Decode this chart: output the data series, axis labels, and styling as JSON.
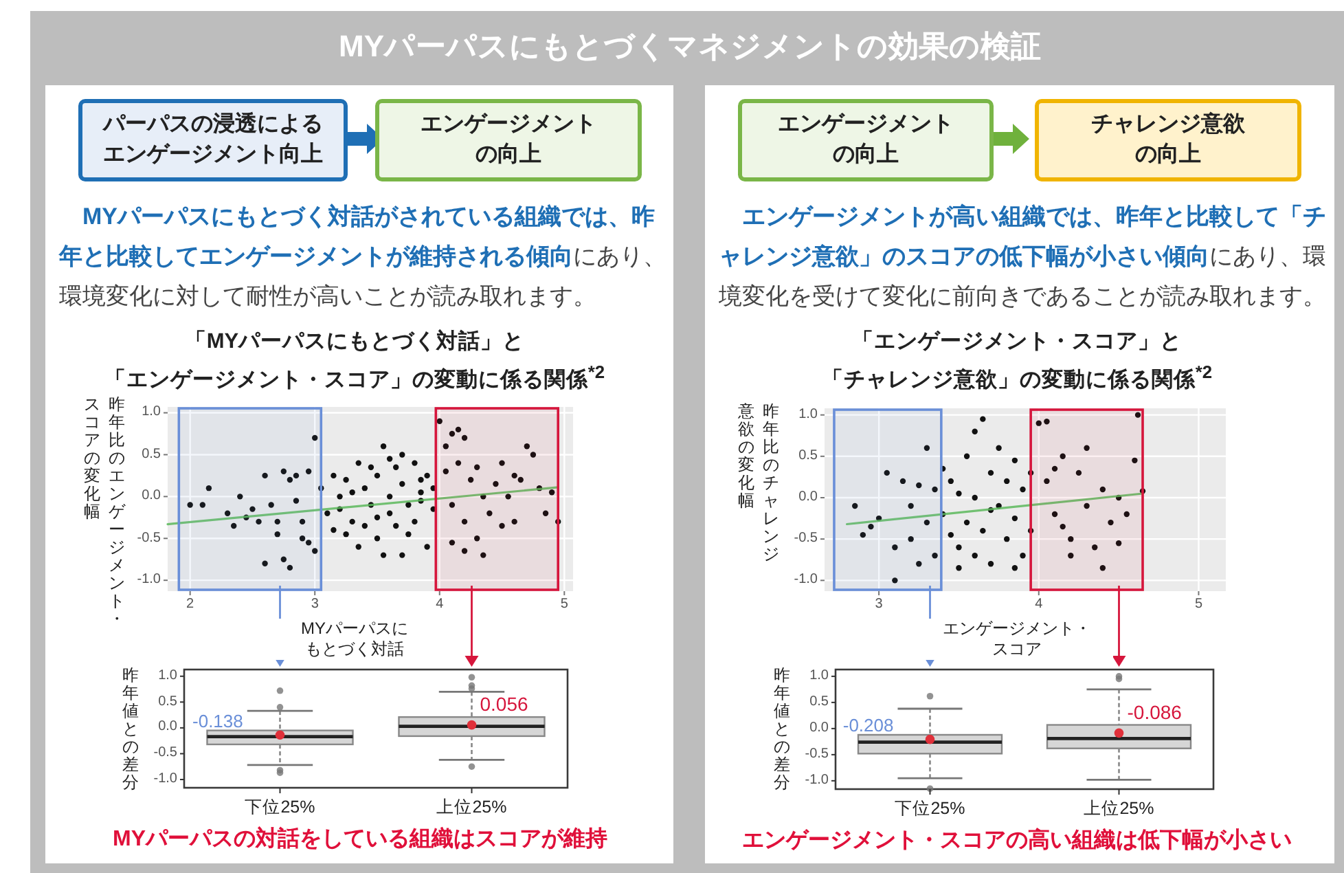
{
  "chart_data": [
    {
      "type": "scatter",
      "title": "「MYパーパスにもとづく対話」と「エンゲージメント・スコア」の変動に係る関係$^{*2}$",
      "xlabel": "MYパーパスにもとづく対話",
      "ylabel": "昨年比のエンゲージメント・スコアの変化幅",
      "xlim": [
        1.82,
        5.07
      ],
      "ylim": [
        -1.13,
        1.07
      ],
      "xticks": [
        2,
        3,
        4,
        5
      ],
      "yticks": [
        {
          "value": 1,
          "label": "1.0"
        },
        {
          "value": 0.5,
          "label": "0.5"
        },
        {
          "value": 0,
          "label": "0.0"
        },
        {
          "value": -0.5,
          "label": "-0.5"
        },
        {
          "value": -1,
          "label": "-1.0"
        }
      ],
      "grid": true,
      "bands": [
        {
          "axis": "x",
          "from": 1.91,
          "to": 3.05,
          "color": "#6a8fd8"
        },
        {
          "axis": "x",
          "from": 3.97,
          "to": 4.95,
          "color": "#d6163c"
        }
      ],
      "series": [
        {
          "type": "scatter",
          "color": "#111111",
          "x": [
            2.0,
            2.1,
            2.15,
            2.3,
            2.35,
            2.45,
            2.5,
            2.55,
            2.6,
            2.65,
            2.7,
            2.75,
            2.8,
            2.85,
            2.9,
            2.95,
            3.0,
            2.6,
            2.75,
            2.8,
            2.9,
            2.95,
            3.0,
            2.85,
            2.4,
            2.7,
            3.05,
            3.1,
            3.15,
            3.2,
            3.25,
            3.3,
            3.35,
            3.4,
            3.45,
            3.5,
            3.5,
            3.55,
            3.6,
            3.6,
            3.65,
            3.7,
            3.7,
            3.75,
            3.8,
            3.8,
            3.85,
            3.9,
            3.9,
            3.95,
            3.3,
            3.4,
            3.55,
            3.65,
            3.75,
            3.85,
            3.45,
            3.2,
            3.15,
            3.35,
            3.6,
            3.7,
            3.5,
            3.25,
            3.85,
            3.95,
            4.0,
            4.05,
            4.1,
            4.15,
            4.2,
            4.05,
            4.1,
            4.15,
            4.2,
            4.25,
            4.3,
            4.3,
            4.35,
            4.4,
            4.45,
            4.5,
            4.55,
            4.6,
            4.65,
            4.7,
            4.75,
            4.8,
            4.85,
            4.9,
            4.95,
            4.1,
            4.2,
            4.35,
            4.5,
            4.6
          ],
          "values": [
            -0.1,
            -0.1,
            0.1,
            -0.2,
            -0.35,
            -0.25,
            -0.15,
            -0.3,
            0.25,
            -0.1,
            -0.3,
            0.3,
            0.2,
            -0.05,
            -0.5,
            0.3,
            0.7,
            -0.8,
            -0.75,
            -0.85,
            -0.3,
            -0.55,
            -0.65,
            0.25,
            0.0,
            -0.45,
            0.1,
            -0.2,
            -0.4,
            0.0,
            0.2,
            -0.3,
            -0.6,
            0.1,
            -0.1,
            -0.5,
            0.25,
            0.6,
            -0.2,
            0.0,
            -0.35,
            0.5,
            0.15,
            -0.1,
            -0.3,
            0.4,
            0.05,
            -0.6,
            0.25,
            -0.15,
            0.05,
            -0.35,
            -0.7,
            0.35,
            -0.45,
            -0.05,
            0.35,
            -0.15,
            0.25,
            0.4,
            0.45,
            -0.7,
            -0.25,
            -0.45,
            0.2,
            0.1,
            0.9,
            0.6,
            0.75,
            0.8,
            0.7,
            0.3,
            -0.1,
            0.4,
            -0.3,
            0.2,
            -0.5,
            0.35,
            0.0,
            -0.2,
            0.15,
            0.4,
            0.0,
            -0.3,
            0.2,
            0.6,
            0.5,
            0.1,
            -0.2,
            0.05,
            -0.3,
            -0.55,
            -0.65,
            -0.7,
            -0.35,
            0.25
          ]
        },
        {
          "type": "line",
          "color": "#5cb85c",
          "x": [
            1.82,
            4.95
          ],
          "values": [
            -0.33,
            0.11
          ]
        }
      ],
      "annotations": [
        "パーパスの浸透によるエンゲージメント向上",
        "エンゲージメントの向上",
        "MYパーパスにもとづく対話がされている組織では、昨年と比較してエンゲージメントが維持される傾向",
        "にあり、環境変化に対して耐性が高いことが読み取れます。",
        "MYパーパスにもとづくマネジメントの効果の検証"
      ]
    },
    {
      "type": "box",
      "categories": [
        "下位25%",
        "上位25%"
      ],
      "ylabel": "昨年値との差分",
      "ylim": [
        -1.16,
        1.13
      ],
      "yticks": [
        {
          "value": 1,
          "label": "1.0"
        },
        {
          "value": 0.5,
          "label": "0.5"
        },
        {
          "value": 0,
          "label": "0.0"
        },
        {
          "value": -0.5,
          "label": "-0.5"
        },
        {
          "value": -1,
          "label": "-1.0"
        }
      ],
      "boxes": [
        {
          "low": -0.72,
          "q1": -0.32,
          "median": -0.17,
          "q3": -0.05,
          "high": 0.33,
          "mean": -0.138,
          "outliers": [
            0.72,
            0.4,
            -0.82,
            -0.87
          ]
        },
        {
          "low": -0.62,
          "q1": -0.16,
          "median": 0.03,
          "q3": 0.21,
          "high": 0.7,
          "mean": 0.056,
          "outliers": [
            0.98,
            0.82,
            0.76,
            -0.75
          ]
        }
      ],
      "annotations": [
        {
          "text": "-0.138",
          "x": "下位25%",
          "y": -0.138
        },
        {
          "text": "0.056",
          "x": "上位25%",
          "y": 0.056
        },
        "MYパーパスの対話をしている組織はスコアが維持"
      ]
    },
    {
      "type": "scatter",
      "title": "「エンゲージメント・スコア」と「チャレンジ意欲」の変動に係る関係$^{*2}$",
      "xlabel": "エンゲージメント・スコア",
      "ylabel": "昨年比のチャレンジ意欲の変化幅",
      "xlim": [
        2.66,
        5.17
      ],
      "ylim": [
        -1.13,
        1.08
      ],
      "xticks": [
        3,
        4,
        5
      ],
      "yticks": [
        {
          "value": 1,
          "label": "1.0"
        },
        {
          "value": 0.5,
          "label": "0.5"
        },
        {
          "value": 0,
          "label": "0.0"
        },
        {
          "value": -0.5,
          "label": "-0.5"
        },
        {
          "value": -1,
          "label": "-1.0"
        }
      ],
      "grid": true,
      "bands": [
        {
          "axis": "x",
          "from": 2.72,
          "to": 3.39,
          "color": "#6a8fd8"
        },
        {
          "axis": "x",
          "from": 3.95,
          "to": 4.65,
          "color": "#d6163c"
        }
      ],
      "series": [
        {
          "type": "scatter",
          "color": "#111111",
          "x": [
            2.85,
            2.9,
            2.95,
            3.0,
            3.05,
            3.1,
            3.15,
            3.2,
            3.25,
            3.3,
            3.3,
            3.35,
            3.35,
            3.1,
            3.2,
            3.4,
            3.45,
            3.5,
            3.55,
            3.55,
            3.6,
            3.6,
            3.65,
            3.65,
            3.7,
            3.7,
            3.75,
            3.75,
            3.8,
            3.8,
            3.85,
            3.85,
            3.9,
            3.9,
            3.95,
            3.95,
            3.45,
            3.5,
            3.4,
            3.25,
            3.6,
            3.7,
            3.85,
            3.5,
            4.0,
            4.05,
            4.1,
            4.15,
            4.2,
            4.25,
            4.3,
            4.3,
            4.35,
            4.4,
            4.45,
            4.5,
            4.55,
            4.6,
            4.65,
            4.62,
            4.2,
            4.05,
            4.15,
            4.4,
            4.5,
            4.1
          ],
          "values": [
            -0.1,
            -0.45,
            -0.35,
            -0.25,
            0.3,
            -0.6,
            0.2,
            -0.1,
            -0.8,
            0.6,
            -0.3,
            -0.7,
            0.1,
            -1.0,
            -0.5,
            -0.2,
            0.2,
            -0.6,
            0.5,
            -0.3,
            0.8,
            0.0,
            0.95,
            -0.4,
            0.3,
            -0.8,
            0.6,
            -0.1,
            -0.5,
            0.2,
            0.45,
            -0.25,
            -0.7,
            0.1,
            0.3,
            -0.4,
            -0.45,
            0.05,
            0.35,
            0.15,
            -0.7,
            -0.15,
            -0.85,
            -0.85,
            0.9,
            0.92,
            -0.2,
            0.5,
            -0.5,
            0.3,
            0.6,
            -0.1,
            -0.6,
            0.1,
            -0.3,
            0.0,
            -0.2,
            0.45,
            0.08,
            1.0,
            -0.7,
            0.2,
            -0.35,
            -0.85,
            -0.55,
            0.35
          ]
        },
        {
          "type": "line",
          "color": "#5cb85c",
          "x": [
            2.8,
            4.65
          ],
          "values": [
            -0.32,
            0.05
          ]
        }
      ],
      "annotations": [
        "エンゲージメントの向上",
        "チャレンジ意欲の向上",
        "エンゲージメントが高い組織では、昨年と比較して「チャレンジ意欲」のスコアの低下幅が小さい傾向",
        "にあり、環境変化を受けて変化に前向きであることが読み取れます。"
      ]
    },
    {
      "type": "box",
      "categories": [
        "下位25%",
        "上位25%"
      ],
      "ylabel": "昨年値との差分",
      "ylim": [
        -1.16,
        1.13
      ],
      "yticks": [
        {
          "value": 1,
          "label": "1.0"
        },
        {
          "value": 0.5,
          "label": "0.5"
        },
        {
          "value": 0,
          "label": "0.0"
        },
        {
          "value": -0.5,
          "label": "-0.5"
        },
        {
          "value": -1,
          "label": "-1.0"
        }
      ],
      "boxes": [
        {
          "low": -0.95,
          "q1": -0.48,
          "median": -0.26,
          "q3": -0.12,
          "high": 0.38,
          "mean": -0.208,
          "outliers": [
            0.62,
            -1.15
          ]
        },
        {
          "low": -0.98,
          "q1": -0.38,
          "median": -0.19,
          "q3": 0.07,
          "high": 0.75,
          "mean": -0.086,
          "outliers": [
            1.0,
            0.95
          ]
        }
      ],
      "annotations": [
        {
          "text": "-0.208",
          "x": "下位25%",
          "y": -0.208
        },
        {
          "text": "-0.086",
          "x": "上位25%",
          "y": -0.086
        },
        "エンゲージメント・スコアの高い組織は低下幅が小さい"
      ]
    }
  ]
}
